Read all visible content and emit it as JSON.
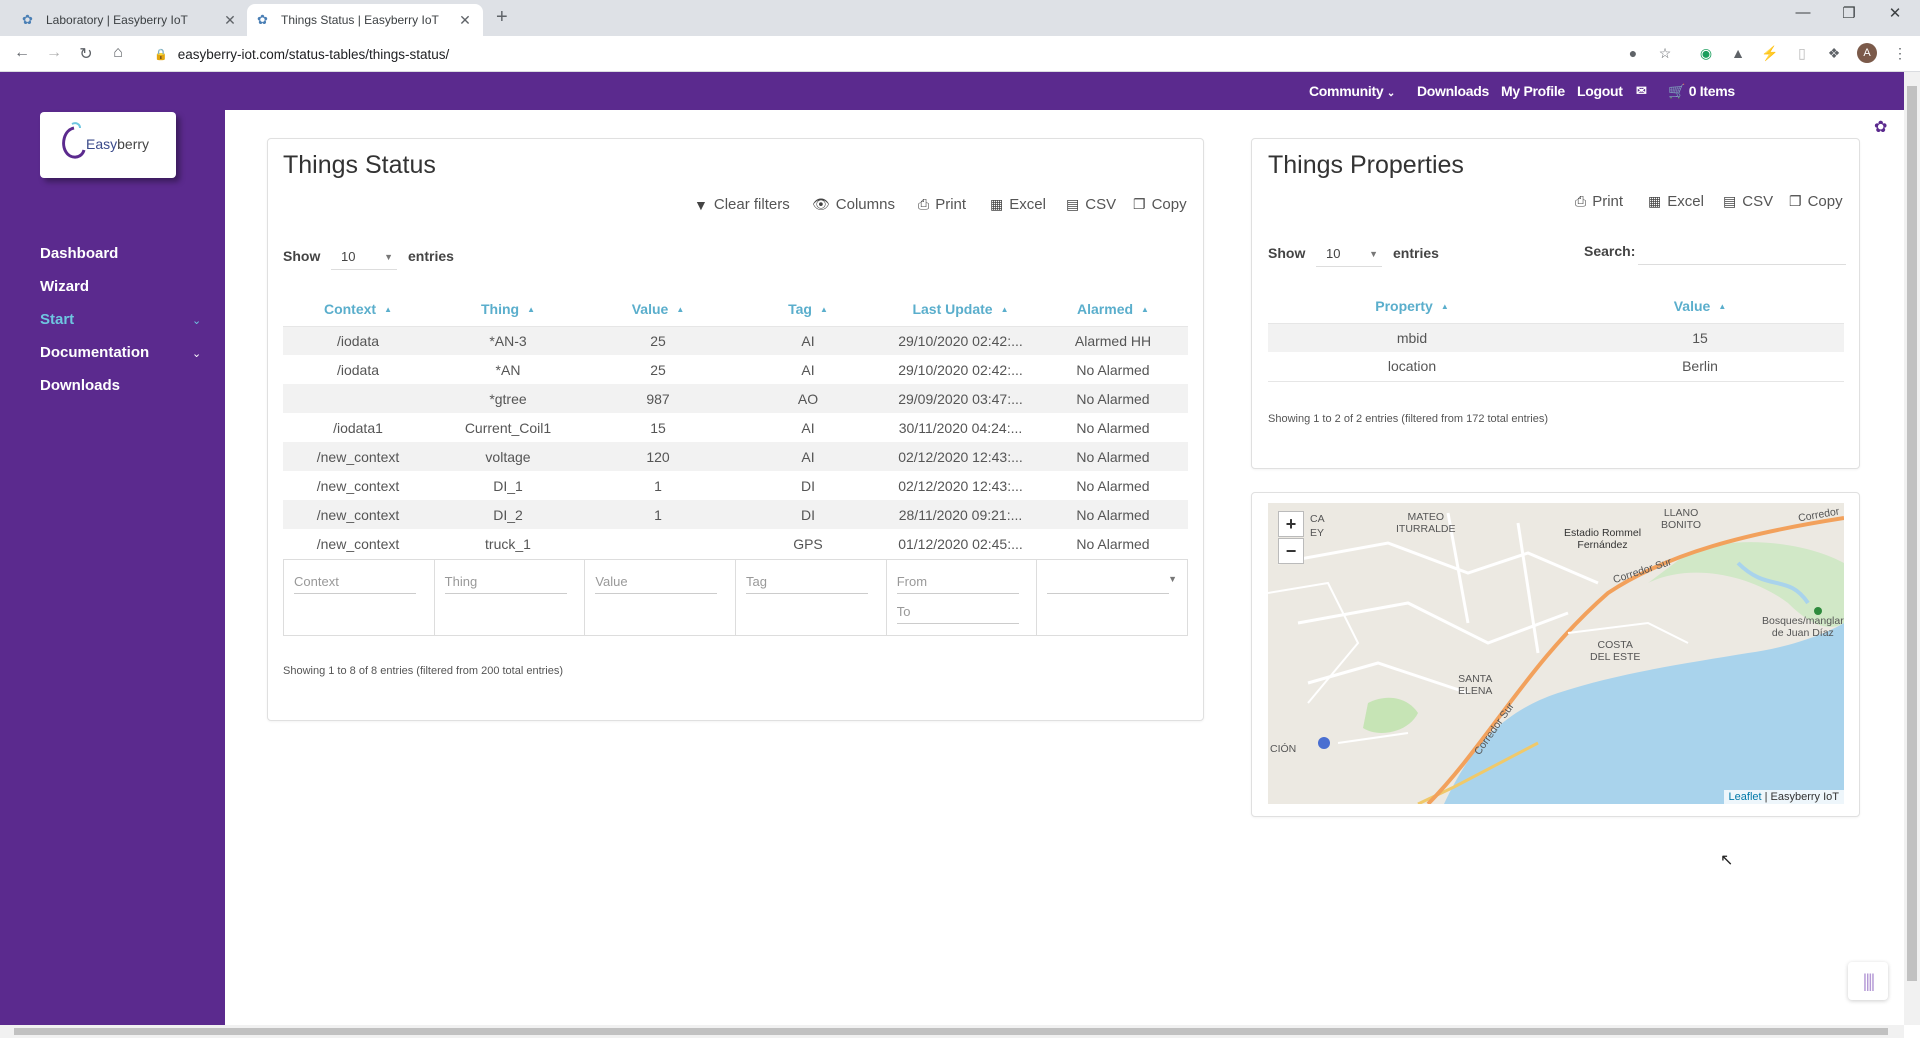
{
  "browser": {
    "tabs": [
      {
        "title": "Laboratory | Easyberry IoT",
        "active": false
      },
      {
        "title": "Things Status | Easyberry IoT",
        "active": true
      }
    ],
    "url": "easyberry-iot.com/status-tables/things-status/",
    "avatar_letter": "A"
  },
  "topnav": {
    "community": "Community",
    "downloads": "Downloads",
    "profile": "My Profile",
    "logout": "Logout",
    "cart": "0 Items"
  },
  "logo": {
    "text_a": "Easy",
    "text_b": "berry"
  },
  "sidebar": {
    "items": [
      {
        "label": "Dashboard"
      },
      {
        "label": "Wizard"
      },
      {
        "label": "Start"
      },
      {
        "label": "Documentation"
      },
      {
        "label": "Downloads"
      }
    ]
  },
  "things_status": {
    "title": "Things Status",
    "buttons": {
      "clear_filters": "Clear filters",
      "columns": "Columns",
      "print": "Print",
      "excel": "Excel",
      "csv": "CSV",
      "copy": "Copy"
    },
    "show_label": "Show",
    "entries_label": "entries",
    "page_size": "10",
    "columns": [
      "Context",
      "Thing",
      "Value",
      "Tag",
      "Last Update",
      "Alarmed"
    ],
    "rows": [
      [
        "/iodata",
        "*AN-3",
        "25",
        "AI",
        "29/10/2020 02:42:...",
        "Alarmed HH"
      ],
      [
        "/iodata",
        "*AN",
        "25",
        "AI",
        "29/10/2020 02:42:...",
        "No Alarmed"
      ],
      [
        "",
        "*gtree",
        "987",
        "AO",
        "29/09/2020 03:47:...",
        "No Alarmed"
      ],
      [
        "/iodata1",
        "Current_Coil1",
        "15",
        "AI",
        "30/11/2020 04:24:...",
        "No Alarmed"
      ],
      [
        "/new_context",
        "voltage",
        "120",
        "AI",
        "02/12/2020 12:43:...",
        "No Alarmed"
      ],
      [
        "/new_context",
        "DI_1",
        "1",
        "DI",
        "02/12/2020 12:43:...",
        "No Alarmed"
      ],
      [
        "/new_context",
        "DI_2",
        "1",
        "DI",
        "28/11/2020 09:21:...",
        "No Alarmed"
      ],
      [
        "/new_context",
        "truck_1",
        "",
        "GPS",
        "01/12/2020 02:45:...",
        "No Alarmed"
      ]
    ],
    "filters": {
      "context": "Context",
      "thing": "Thing",
      "value": "Value",
      "tag": "Tag",
      "from": "From",
      "to": "To"
    },
    "info": "Showing 1 to 8 of 8 entries (filtered from 200 total entries)"
  },
  "things_properties": {
    "title": "Things Properties",
    "buttons": {
      "print": "Print",
      "excel": "Excel",
      "csv": "CSV",
      "copy": "Copy"
    },
    "show_label": "Show",
    "entries_label": "entries",
    "page_size": "10",
    "search_label": "Search:",
    "columns": [
      "Property",
      "Value"
    ],
    "rows": [
      [
        "mbid",
        "15"
      ],
      [
        "location",
        "Berlin"
      ]
    ],
    "info": "Showing 1 to 2 of 2 entries (filtered from 172 total entries)"
  },
  "map": {
    "zoom_in": "+",
    "zoom_out": "−",
    "labels": {
      "mateo": "MATEO\nITURRALDE",
      "llano": "LLANO\nBONITO",
      "estadio": "Estadio Rommel\nFernández",
      "corredor1": "Corredor Sur",
      "corredor2": "Corredor",
      "corredor3": "Corredor Sur",
      "costa": "COSTA\nDEL ESTE",
      "santa": "SANTA\nELENA",
      "bosques": "Bosques/manglar\nde Juan Díaz",
      "cion": "CIÓN",
      "ca": "CA",
      "ey": "EY"
    },
    "attribution_link": "Leaflet",
    "attribution_text": " | Easyberry IoT"
  }
}
